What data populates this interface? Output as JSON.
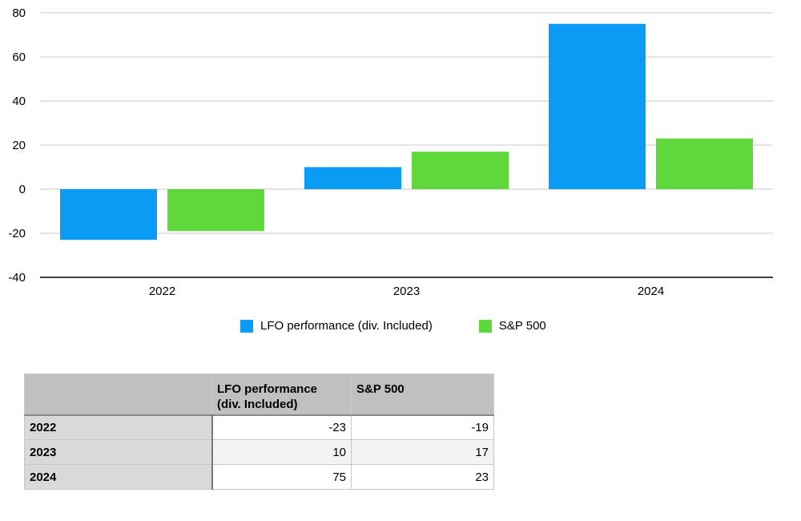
{
  "chart_data": {
    "type": "bar",
    "categories": [
      "2022",
      "2023",
      "2024"
    ],
    "series": [
      {
        "name": "LFO performance (div. Included)",
        "values": [
          -23,
          10,
          75
        ],
        "color": "#0a9bf5"
      },
      {
        "name": "S&P 500",
        "values": [
          -19,
          17,
          23
        ],
        "color": "#5fd93a"
      }
    ],
    "ylim": [
      -40,
      80
    ],
    "yticks": [
      80,
      60,
      40,
      20,
      0,
      -20,
      -40
    ],
    "grid": true,
    "legend_position": "bottom",
    "xlabel": "",
    "ylabel": ""
  },
  "table": {
    "headers": [
      "",
      "LFO performance (div. Included)",
      "S&P 500"
    ],
    "header_lines": {
      "col_a": [
        "LFO performance",
        "(div. Included)"
      ],
      "col_b": "S&P 500"
    },
    "rows": [
      {
        "label": "2022",
        "a": "-23",
        "b": "-19"
      },
      {
        "label": "2023",
        "a": "10",
        "b": "17"
      },
      {
        "label": "2024",
        "a": "75",
        "b": "23"
      }
    ]
  }
}
